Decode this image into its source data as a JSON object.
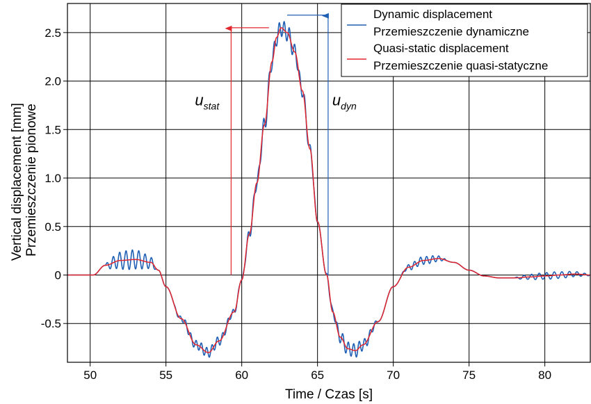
{
  "chart_data": {
    "type": "line",
    "title": "",
    "xlabel": "Time / Czas [s]",
    "ylabel": [
      "Vertical displacement [mm]",
      "Przemieszczenie pionowe"
    ],
    "xlim": [
      48.5,
      83
    ],
    "ylim": [
      -0.9,
      2.8
    ],
    "xticks": [
      "50",
      "55",
      "60",
      "65",
      "70",
      "75",
      "80"
    ],
    "yticks": [
      "-0.5",
      "0",
      "0.5",
      "1.0",
      "1.5",
      "2.0",
      "2.5"
    ],
    "grid": true,
    "legend_position": "top-right",
    "series": [
      {
        "name": [
          "Dynamic displacement",
          "Przemieszczenie dynamiczne"
        ],
        "color": "#1f5fb4",
        "x": [
          48.5,
          50.2,
          51,
          52,
          53,
          54,
          54.5,
          55,
          56,
          57,
          57.8,
          58.5,
          59.5,
          60,
          60.5,
          61,
          61.5,
          62,
          62.3,
          62.6,
          63,
          63.5,
          64,
          64.5,
          65,
          65.6,
          66,
          66.5,
          67,
          67.5,
          68,
          69,
          70,
          71,
          72,
          73,
          74,
          75,
          76,
          77,
          78,
          79,
          80,
          81,
          82,
          83
        ],
        "y": [
          0,
          0,
          0.1,
          0.15,
          0.16,
          0.13,
          0.05,
          -0.12,
          -0.45,
          -0.72,
          -0.8,
          -0.68,
          -0.38,
          -0.05,
          0.42,
          0.95,
          1.55,
          2.2,
          2.45,
          2.55,
          2.5,
          2.3,
          1.9,
          1.3,
          0.55,
          0,
          -0.38,
          -0.64,
          -0.76,
          -0.78,
          -0.72,
          -0.48,
          -0.12,
          0.08,
          0.15,
          0.17,
          0.13,
          0.05,
          -0.01,
          -0.03,
          -0.03,
          -0.02,
          -0.01,
          0,
          0.01,
          0
        ],
        "oscillation": {
          "bursts": [
            {
              "from": 51.0,
              "to": 54.4,
              "amplitude": 0.1,
              "period": 0.42
            },
            {
              "from": 55.5,
              "to": 60.0,
              "amplitude": 0.05,
              "period": 0.35
            },
            {
              "from": 60.0,
              "to": 65.0,
              "amplitude": 0.09,
              "period": 0.34
            },
            {
              "from": 65.5,
              "to": 69.0,
              "amplitude": 0.07,
              "period": 0.36
            },
            {
              "from": 70.5,
              "to": 73.5,
              "amplitude": 0.04,
              "period": 0.4
            },
            {
              "from": 78.0,
              "to": 83.0,
              "amplitude": 0.035,
              "period": 0.5
            }
          ]
        }
      },
      {
        "name": [
          "Quasi-static displacement",
          "Przemieszczenie quasi-statyczne"
        ],
        "color": "#e3262e",
        "x": [
          48.5,
          50.2,
          51,
          52,
          53,
          54,
          54.5,
          55,
          56,
          57,
          57.8,
          58.5,
          59.5,
          60,
          60.5,
          61,
          61.5,
          62,
          62.3,
          62.6,
          63,
          63.5,
          64,
          64.5,
          65,
          65.6,
          66,
          66.5,
          67,
          67.5,
          68,
          69,
          70,
          71,
          72,
          73,
          74,
          75,
          76,
          77,
          78,
          79,
          80,
          81,
          82,
          83
        ],
        "y": [
          0,
          0,
          0.1,
          0.15,
          0.16,
          0.13,
          0.05,
          -0.12,
          -0.45,
          -0.72,
          -0.8,
          -0.68,
          -0.38,
          -0.05,
          0.42,
          0.95,
          1.55,
          2.2,
          2.45,
          2.55,
          2.5,
          2.3,
          1.9,
          1.3,
          0.55,
          0,
          -0.38,
          -0.64,
          -0.76,
          -0.78,
          -0.72,
          -0.48,
          -0.12,
          0.08,
          0.15,
          0.17,
          0.13,
          0.05,
          -0.01,
          -0.03,
          -0.03,
          -0.02,
          -0.01,
          0,
          0.01,
          0
        ]
      }
    ],
    "annotations": [
      {
        "label": "u",
        "subscript": "stat",
        "color": "#e3262e",
        "x": 59.3,
        "y_from": 0,
        "y_to": 2.55,
        "bar_to_x": 61.8
      },
      {
        "label": "u",
        "subscript": "dyn",
        "color": "#1f5fb4",
        "x": 65.7,
        "y_from": 0,
        "y_to": 2.68,
        "bar_from_x": 63.0
      }
    ]
  }
}
